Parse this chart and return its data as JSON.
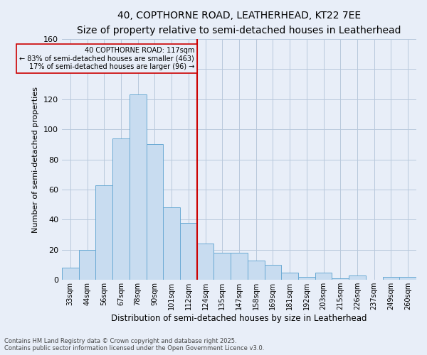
{
  "title_line1": "40, COPTHORNE ROAD, LEATHERHEAD, KT22 7EE",
  "title_line2": "Size of property relative to semi-detached houses in Leatherhead",
  "xlabel": "Distribution of semi-detached houses by size in Leatherhead",
  "ylabel": "Number of semi-detached properties",
  "categories": [
    "33sqm",
    "44sqm",
    "56sqm",
    "67sqm",
    "78sqm",
    "90sqm",
    "101sqm",
    "112sqm",
    "124sqm",
    "135sqm",
    "147sqm",
    "158sqm",
    "169sqm",
    "181sqm",
    "192sqm",
    "203sqm",
    "215sqm",
    "226sqm",
    "237sqm",
    "249sqm",
    "260sqm"
  ],
  "values": [
    8,
    20,
    63,
    94,
    123,
    90,
    48,
    38,
    24,
    18,
    18,
    13,
    10,
    5,
    2,
    5,
    1,
    3,
    0,
    2,
    2
  ],
  "bar_color": "#c8dcf0",
  "bar_edge_color": "#6aaad4",
  "grid_color": "#b8c8dc",
  "background_color": "#e8eef8",
  "annotation_line_color": "#cc0000",
  "annotation_box_text": "40 COPTHORNE ROAD: 117sqm\n← 83% of semi-detached houses are smaller (463)\n17% of semi-detached houses are larger (96) →",
  "annotation_box_color": "#cc0000",
  "ylim": [
    0,
    160
  ],
  "yticks": [
    0,
    20,
    40,
    60,
    80,
    100,
    120,
    140,
    160
  ],
  "footer_line1": "Contains HM Land Registry data © Crown copyright and database right 2025.",
  "footer_line2": "Contains public sector information licensed under the Open Government Licence v3.0.",
  "annotation_line_bar_index": 8,
  "n_bars": 21
}
